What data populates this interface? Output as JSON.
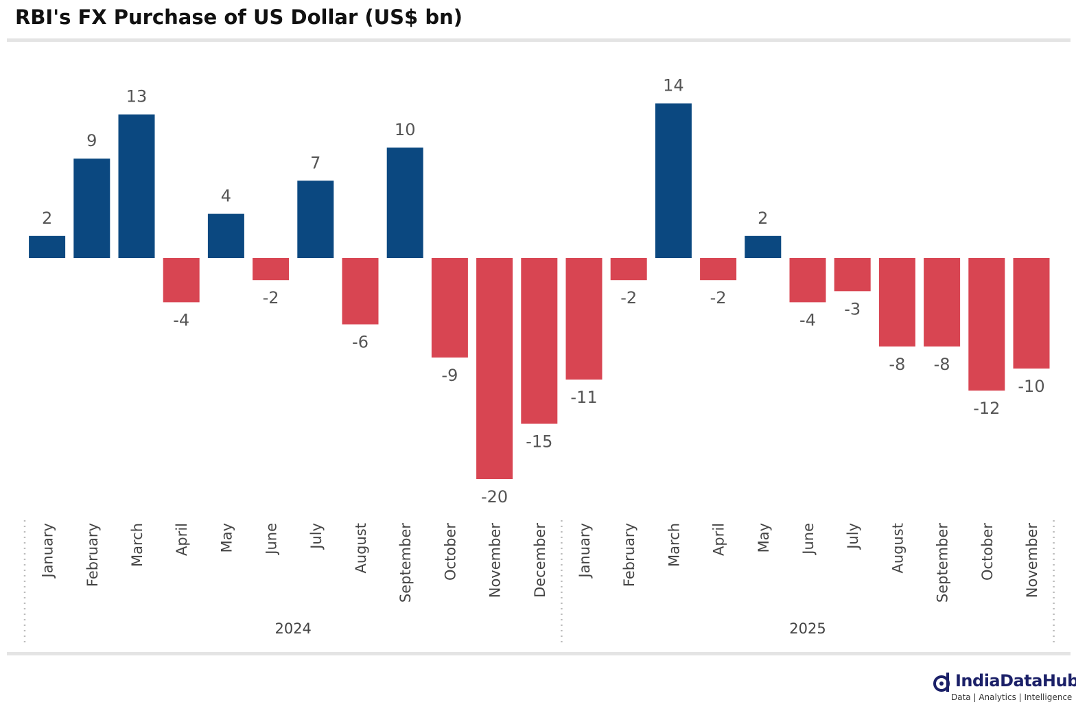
{
  "title": "RBI's FX Purchase of US Dollar (US$ bn)",
  "colors": {
    "positive": "#0b4880",
    "negative": "#d84552",
    "label": "#555555",
    "axis": "#444444"
  },
  "brand": {
    "name": "IndiaDataHub",
    "tagline": "Data | Analytics | Intelligence"
  },
  "chart_data": {
    "type": "bar",
    "title": "RBI's FX Purchase of US Dollar (US$ bn)",
    "xlabel": "",
    "ylabel": "",
    "categories": [
      "January",
      "February",
      "March",
      "April",
      "May",
      "June",
      "July",
      "August",
      "September",
      "October",
      "November",
      "December",
      "January",
      "February",
      "March",
      "April",
      "May",
      "June",
      "July",
      "August",
      "September",
      "October",
      "November"
    ],
    "values": [
      2,
      9,
      13,
      -4,
      4,
      -2,
      7,
      -6,
      10,
      -9,
      -20,
      -15,
      -11,
      -2,
      14,
      -2,
      2,
      -4,
      -3,
      -8,
      -8,
      -12,
      -10
    ],
    "groups": [
      {
        "label": "2024",
        "count": 12
      },
      {
        "label": "2025",
        "count": 11
      }
    ],
    "grid": false,
    "legend": "none"
  }
}
